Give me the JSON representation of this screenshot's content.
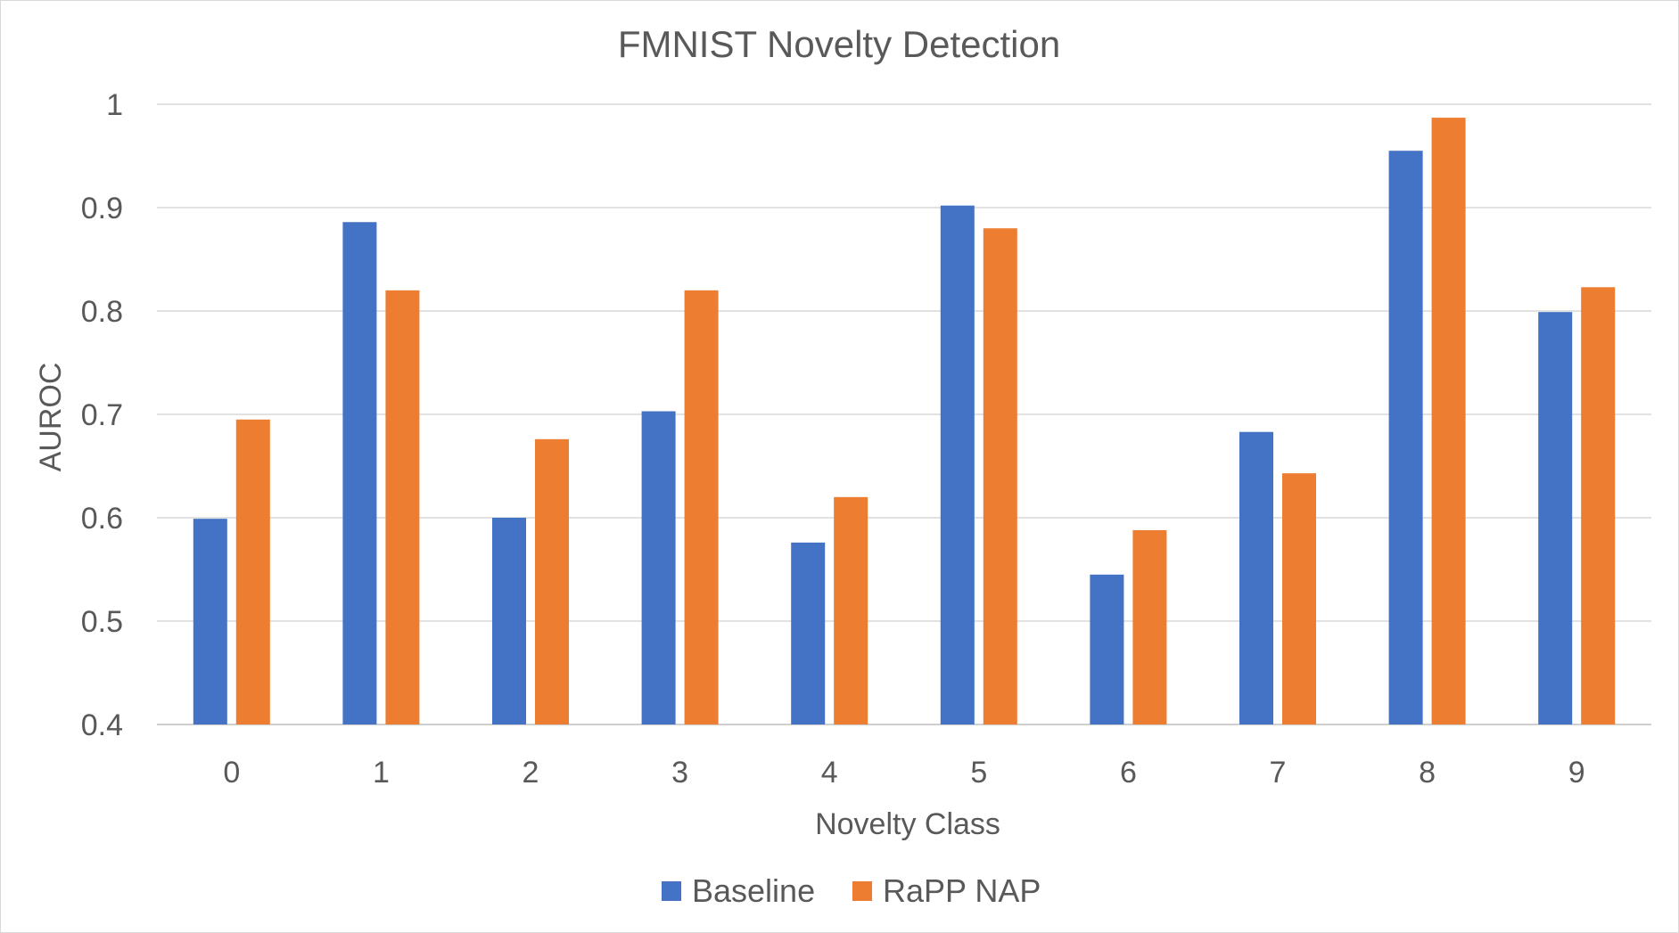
{
  "chart_data": {
    "type": "bar",
    "title": "FMNIST Novelty Detection",
    "xlabel": "Novelty Class",
    "ylabel": "AUROC",
    "categories": [
      "0",
      "1",
      "2",
      "3",
      "4",
      "5",
      "6",
      "7",
      "8",
      "9"
    ],
    "series": [
      {
        "name": "Baseline",
        "color": "#4472C4",
        "values": [
          0.599,
          0.886,
          0.6,
          0.703,
          0.576,
          0.902,
          0.545,
          0.683,
          0.955,
          0.799
        ]
      },
      {
        "name": "RaPP NAP",
        "color": "#ED7D31",
        "values": [
          0.695,
          0.82,
          0.676,
          0.82,
          0.62,
          0.88,
          0.588,
          0.643,
          0.987,
          0.823
        ]
      }
    ],
    "ylim": [
      0.4,
      1.0
    ],
    "yticks": [
      "0.4",
      "0.5",
      "0.6",
      "0.7",
      "0.8",
      "0.9",
      "1"
    ],
    "grid": true,
    "legend_position": "bottom"
  }
}
